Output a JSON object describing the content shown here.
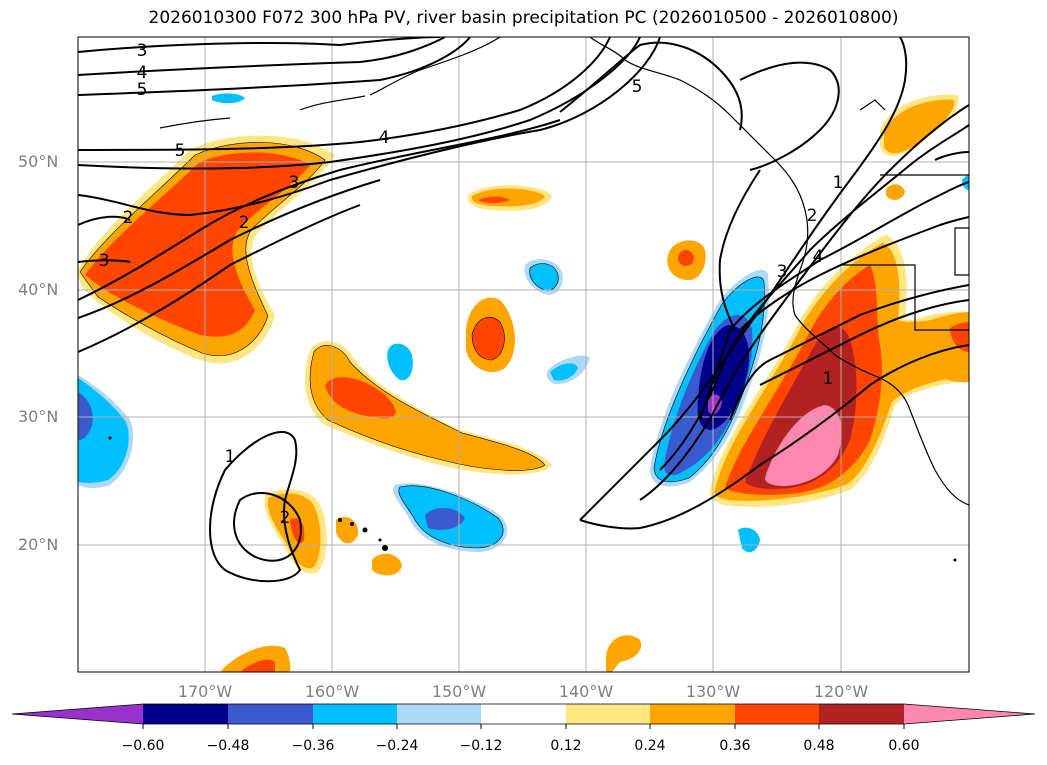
{
  "title": "2026010300 F072 300 hPa PV, river basin precipitation PC (2026010500 - 2026010800)",
  "map": {
    "lat_labels": [
      "50°N",
      "40°N",
      "30°N",
      "20°N"
    ],
    "lon_labels": [
      "170°W",
      "160°W",
      "150°W",
      "140°W",
      "130°W",
      "120°W"
    ],
    "pv_contour_labels": [
      "3",
      "4",
      "5",
      "5",
      "4",
      "5",
      "3",
      "2",
      "2",
      "3",
      "1",
      "2",
      "1",
      "2",
      "3",
      "4",
      "1"
    ]
  },
  "colorbar": {
    "ticks": [
      "−0.60",
      "−0.48",
      "−0.36",
      "−0.24",
      "−0.12",
      "0.12",
      "0.24",
      "0.36",
      "0.48",
      "0.60"
    ],
    "colors": [
      "#9932cc",
      "#00008b",
      "#3a5bd0",
      "#00bfff",
      "#add8f6",
      "#ffffff",
      "#ffe680",
      "#ffa500",
      "#ff4500",
      "#b22222",
      "#ff88b0"
    ]
  }
}
